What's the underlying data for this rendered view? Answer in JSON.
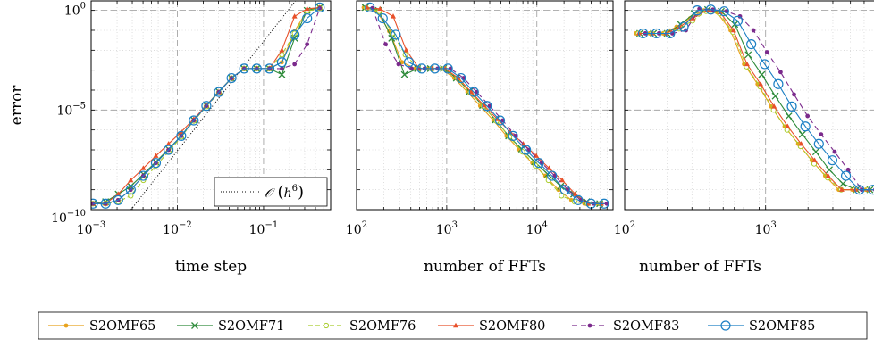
{
  "legend": [
    {
      "name": "S2OMF65",
      "color": "#e8a21c",
      "marker": "dot",
      "dash": ""
    },
    {
      "name": "S2OMF71",
      "color": "#2e8b3a",
      "marker": "x",
      "dash": ""
    },
    {
      "name": "S2OMF76",
      "color": "#a8cc2a",
      "marker": "ocircle",
      "dash": "5 3"
    },
    {
      "name": "S2OMF80",
      "color": "#e8502a",
      "marker": "tri",
      "dash": ""
    },
    {
      "name": "S2OMF83",
      "color": "#7b2a8c",
      "marker": "dot",
      "dash": "6 4"
    },
    {
      "name": "S2OMF85",
      "color": "#1b7fc4",
      "marker": "bigcircle",
      "dash": ""
    }
  ],
  "chart_data": [
    {
      "type": "line",
      "log_x": true,
      "log_y": true,
      "xlabel": "time step",
      "ylabel": "error",
      "xlim": [
        0.001,
        0.6
      ],
      "ylim": [
        1e-10,
        3
      ],
      "x_ticks": [
        {
          "v": 0.001,
          "base": "10",
          "exp": "−3"
        },
        {
          "v": 0.01,
          "base": "10",
          "exp": "−2"
        },
        {
          "v": 0.1,
          "base": "10",
          "exp": "−1"
        }
      ],
      "y_ticks": [
        {
          "v": 1,
          "base": "10",
          "exp": "0"
        },
        {
          "v": 1e-05,
          "base": "10",
          "exp": "−5"
        },
        {
          "v": 1e-10,
          "base": "10",
          "exp": "−10"
        }
      ],
      "grid": true,
      "reference": {
        "label_prefix": "𝒪",
        "label_arg": "h",
        "label_exp": "6",
        "slope": 6,
        "x": [
          0.0029,
          0.27
        ],
        "y": [
          1e-10,
          6.5
        ]
      },
      "series": [
        {
          "name": "S2OMF65",
          "x": [
            0.00105,
            0.00147,
            0.00206,
            0.00288,
            0.00403,
            0.00564,
            0.0079,
            0.0111,
            0.0155,
            0.0217,
            0.0303,
            0.0425,
            0.0595,
            0.0833,
            0.117,
            0.163,
            0.229,
            0.32,
            0.448
          ],
          "y": [
            2e-10,
            2e-10,
            3e-10,
            1e-09,
            5e-09,
            2.2e-08,
            1e-07,
            5e-07,
            3e-06,
            1.6e-05,
            8e-05,
            0.0004,
            0.0012,
            0.0012,
            0.0012,
            0.0025,
            0.09,
            1.0,
            1.4
          ]
        },
        {
          "name": "S2OMF71",
          "x": [
            0.00105,
            0.00147,
            0.00206,
            0.00288,
            0.00403,
            0.00564,
            0.0079,
            0.0111,
            0.0155,
            0.0217,
            0.0303,
            0.0425,
            0.0595,
            0.0833,
            0.117,
            0.163,
            0.229,
            0.32,
            0.448
          ],
          "y": [
            2e-10,
            2.5e-10,
            6e-10,
            1.5e-09,
            6e-09,
            2.5e-08,
            1.1e-07,
            5e-07,
            3.2e-06,
            1.7e-05,
            8.5e-05,
            0.0004,
            0.0012,
            0.0012,
            0.0012,
            0.0006,
            0.04,
            1.0,
            1.4
          ]
        },
        {
          "name": "S2OMF76",
          "x": [
            0.00105,
            0.00147,
            0.00206,
            0.00288,
            0.00403,
            0.00564,
            0.0079,
            0.0111,
            0.0155,
            0.0217,
            0.0303,
            0.0425,
            0.0595,
            0.0833,
            0.117,
            0.163,
            0.229,
            0.32,
            0.448
          ],
          "y": [
            2e-10,
            2e-10,
            2.5e-10,
            5e-10,
            3e-09,
            1.6e-08,
            8e-08,
            4.5e-07,
            2.8e-06,
            1.5e-05,
            7.5e-05,
            0.0004,
            0.0012,
            0.0012,
            0.0012,
            0.006,
            0.07,
            0.9,
            1.3
          ]
        },
        {
          "name": "S2OMF80",
          "x": [
            0.00105,
            0.00147,
            0.00206,
            0.00288,
            0.00403,
            0.00564,
            0.0079,
            0.0111,
            0.0155,
            0.0217,
            0.0303,
            0.0425,
            0.0595,
            0.0833,
            0.117,
            0.163,
            0.229,
            0.32,
            0.448
          ],
          "y": [
            2e-10,
            2e-10,
            6e-10,
            3e-09,
            1.2e-08,
            5e-08,
            2e-07,
            8e-07,
            3.5e-06,
            1.7e-05,
            8e-05,
            0.0004,
            0.0012,
            0.0012,
            0.0012,
            0.01,
            0.5,
            1.2,
            1.4
          ]
        },
        {
          "name": "S2OMF83",
          "x": [
            0.00105,
            0.00147,
            0.00206,
            0.00288,
            0.00403,
            0.00564,
            0.0079,
            0.0111,
            0.0155,
            0.0217,
            0.0303,
            0.0425,
            0.0595,
            0.0833,
            0.117,
            0.163,
            0.229,
            0.32,
            0.448
          ],
          "y": [
            2e-10,
            2e-10,
            3e-10,
            1e-09,
            5e-09,
            2.2e-08,
            1e-07,
            5e-07,
            3e-06,
            1.6e-05,
            8e-05,
            0.0004,
            0.0012,
            0.0012,
            0.0012,
            0.0012,
            0.002,
            0.02,
            1.3
          ]
        },
        {
          "name": "S2OMF85",
          "x": [
            0.00105,
            0.00147,
            0.00206,
            0.00288,
            0.00403,
            0.00564,
            0.0079,
            0.0111,
            0.0155,
            0.0217,
            0.0303,
            0.0425,
            0.0595,
            0.0833,
            0.117,
            0.163,
            0.229,
            0.32,
            0.448
          ],
          "y": [
            2e-10,
            2e-10,
            3e-10,
            1e-09,
            5e-09,
            2.2e-08,
            1e-07,
            5e-07,
            3e-06,
            1.6e-05,
            8e-05,
            0.0004,
            0.0012,
            0.0012,
            0.0012,
            0.0025,
            0.06,
            0.4,
            1.4
          ]
        }
      ]
    },
    {
      "type": "line",
      "log_x": true,
      "log_y": true,
      "xlabel": "number of FFTs",
      "ylabel": "",
      "xlim": [
        100,
        70000
      ],
      "ylim": [
        1e-10,
        3
      ],
      "x_ticks": [
        {
          "v": 100,
          "base": "10",
          "exp": "2"
        },
        {
          "v": 1000,
          "base": "10",
          "exp": "3"
        },
        {
          "v": 10000,
          "base": "10",
          "exp": "4"
        }
      ],
      "y_ticks": [],
      "grid": true,
      "series": [
        {
          "name": "S2OMF65",
          "x": [
            120,
            165,
            230,
            320,
            450,
            620,
            870,
            1210,
            1700,
            2350,
            3300,
            4600,
            6400,
            8900,
            12400,
            17300,
            24100,
            33600,
            46800
          ],
          "y": [
            1.4,
            1.0,
            0.09,
            0.0025,
            0.0012,
            0.0012,
            0.0012,
            0.0004,
            8e-05,
            1.6e-05,
            3e-06,
            5e-07,
            1e-07,
            2.2e-08,
            5e-09,
            1e-09,
            3e-10,
            2e-10,
            2e-10
          ]
        },
        {
          "name": "S2OMF71",
          "x": [
            125,
            175,
            245,
            340,
            475,
            660,
            920,
            1280,
            1790,
            2500,
            3480,
            4860,
            6780,
            9450,
            13200,
            18400,
            25600,
            35700,
            49800
          ],
          "y": [
            1.4,
            1.0,
            0.04,
            0.0006,
            0.0012,
            0.0012,
            0.0012,
            0.0004,
            8.5e-05,
            1.7e-05,
            3.2e-06,
            5e-07,
            1.1e-07,
            2.5e-08,
            6e-09,
            1.5e-09,
            6e-10,
            2.5e-10,
            2e-10
          ]
        },
        {
          "name": "S2OMF76",
          "x": [
            128,
            178,
            250,
            348,
            485,
            675,
            940,
            1310,
            1830,
            2550,
            3560,
            4960,
            6920,
            9650,
            13450,
            18750,
            26150,
            36450,
            50800
          ],
          "y": [
            1.3,
            0.9,
            0.07,
            0.006,
            0.0012,
            0.0012,
            0.0012,
            0.0004,
            7.5e-05,
            1.5e-05,
            2.8e-06,
            4.5e-07,
            8e-08,
            1.6e-08,
            3e-09,
            5e-10,
            2.5e-10,
            2e-10,
            2e-10
          ]
        },
        {
          "name": "S2OMF80",
          "x": [
            130,
            182,
            255,
            355,
            495,
            690,
            960,
            1340,
            1870,
            2600,
            3630,
            5060,
            7060,
            9850,
            13700,
            19100,
            26700,
            37200,
            51900
          ],
          "y": [
            1.4,
            1.2,
            0.5,
            0.01,
            0.0012,
            0.0012,
            0.0012,
            0.0004,
            8e-05,
            1.7e-05,
            3.5e-06,
            8e-07,
            2e-07,
            5e-08,
            1.2e-08,
            3e-09,
            6e-10,
            2e-10,
            2e-10
          ]
        },
        {
          "name": "S2OMF83",
          "x": [
            150,
            210,
            292,
            408,
            568,
            792,
            1100,
            1540,
            2150,
            3000,
            4180,
            5830,
            8130,
            11340,
            15800,
            22000,
            30700,
            42800,
            59700
          ],
          "y": [
            1.3,
            0.02,
            0.002,
            0.0012,
            0.0012,
            0.0012,
            0.0012,
            0.0004,
            8e-05,
            1.6e-05,
            3e-06,
            5e-07,
            1e-07,
            2.2e-08,
            5e-09,
            1e-09,
            3e-10,
            2e-10,
            2e-10
          ]
        },
        {
          "name": "S2OMF85",
          "x": [
            140,
            195,
            272,
            380,
            530,
            738,
            1030,
            1440,
            2000,
            2790,
            3900,
            5440,
            7580,
            10570,
            14730,
            20550,
            28650,
            39950,
            55700
          ],
          "y": [
            1.4,
            0.4,
            0.06,
            0.0025,
            0.0012,
            0.0012,
            0.0012,
            0.0004,
            8e-05,
            1.6e-05,
            3e-06,
            5e-07,
            1e-07,
            2.2e-08,
            5e-09,
            1e-09,
            3e-10,
            2e-10,
            2e-10
          ]
        }
      ]
    },
    {
      "type": "line",
      "log_x": true,
      "log_y": true,
      "xlabel": "number of FFTs",
      "ylabel": "",
      "xlim": [
        100,
        7000
      ],
      "ylim": [
        1e-10,
        3
      ],
      "x_ticks": [
        {
          "v": 100,
          "base": "10",
          "exp": "2"
        },
        {
          "v": 1000,
          "base": "10",
          "exp": "3"
        }
      ],
      "y_ticks": [],
      "grid": true,
      "series": [
        {
          "name": "S2OMF65",
          "x": [
            120,
            150,
            187,
            233,
            291,
            363,
            452,
            564,
            703,
            877,
            1094,
            1364,
            1701,
            2121,
            2645,
            3299,
            4114,
            5130,
            6398
          ],
          "y": [
            0.07,
            0.07,
            0.07,
            0.15,
            0.4,
            1.0,
            0.8,
            0.1,
            0.002,
            0.0002,
            1.5e-05,
            1.5e-06,
            2e-07,
            3e-08,
            5e-09,
            1e-09,
            1e-09,
            1e-09,
            1e-09
          ]
        },
        {
          "name": "S2OMF71",
          "x": [
            128,
            160,
            200,
            249,
            311,
            388,
            484,
            604,
            753,
            939,
            1171,
            1460,
            1821,
            2271,
            2832,
            3532,
            4405,
            5494,
            6852
          ],
          "y": [
            0.07,
            0.07,
            0.07,
            0.2,
            0.7,
            1.1,
            0.9,
            0.2,
            0.006,
            0.0006,
            5e-05,
            5e-06,
            6e-07,
            8e-08,
            1e-08,
            2e-09,
            1e-09,
            1e-09,
            1e-09
          ]
        },
        {
          "name": "S2OMF76",
          "x": [
            125,
            156,
            195,
            243,
            303,
            378,
            471,
            587,
            732,
            913,
            1139,
            1420,
            1771,
            2209,
            2755,
            3436,
            4285,
            5344,
            6665
          ],
          "y": [
            0.07,
            0.07,
            0.07,
            0.12,
            0.3,
            0.9,
            0.7,
            0.08,
            0.0015,
            0.00015,
            1e-05,
            1e-06,
            1.5e-07,
            2e-08,
            4e-09,
            1e-09,
            1e-09,
            1e-09,
            1e-09
          ]
        },
        {
          "name": "S2OMF80",
          "x": [
            126,
            157,
            196,
            245,
            305,
            381,
            475,
            592,
            738,
            921,
            1149,
            1433,
            1787,
            2228,
            2779,
            3466,
            4322,
            5391,
            6723
          ],
          "y": [
            0.07,
            0.07,
            0.07,
            0.15,
            0.4,
            1.0,
            0.8,
            0.1,
            0.002,
            0.0002,
            1.5e-05,
            1.5e-06,
            2e-07,
            3e-08,
            5e-09,
            1e-09,
            1e-09,
            1e-09,
            1e-09
          ]
        },
        {
          "name": "S2OMF83",
          "x": [
            140,
            175,
            218,
            272,
            339,
            423,
            527,
            658,
            820,
            1023,
            1276,
            1591,
            1985,
            2476,
            3088,
            3851,
            4803,
            5990,
            7471
          ],
          "y": [
            0.07,
            0.07,
            0.07,
            0.1,
            1.2,
            1.1,
            0.9,
            0.5,
            0.1,
            0.008,
            0.0008,
            6e-05,
            5e-06,
            6e-07,
            8e-08,
            1e-08,
            1e-09,
            1e-09,
            1e-09
          ]
        },
        {
          "name": "S2OMF85",
          "x": [
            135,
            168,
            210,
            262,
            327,
            408,
            508,
            634,
            791,
            986,
            1230,
            1534,
            1914,
            2387,
            2977,
            3713,
            4630,
            5775,
            7202
          ],
          "y": [
            0.07,
            0.07,
            0.07,
            0.15,
            1.0,
            1.1,
            0.9,
            0.3,
            0.02,
            0.002,
            0.0002,
            1.5e-05,
            1.5e-06,
            2e-07,
            3e-08,
            5e-09,
            1e-09,
            1e-09,
            1e-09
          ]
        }
      ]
    }
  ]
}
